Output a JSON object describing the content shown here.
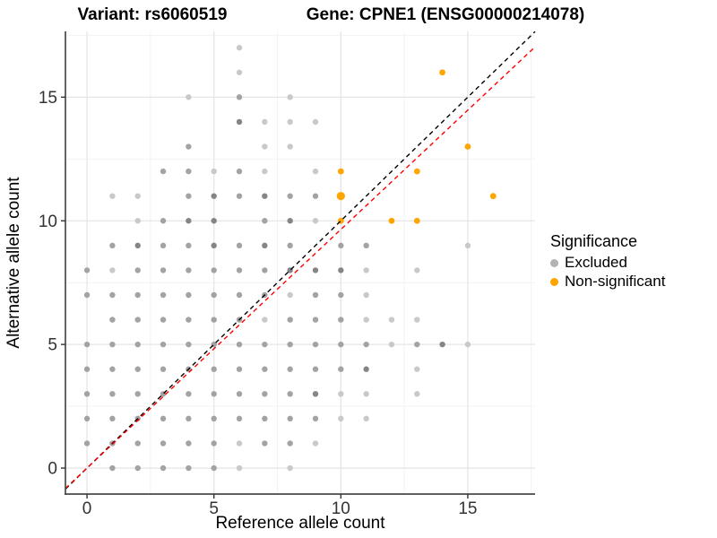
{
  "titles": {
    "left": "Variant: rs6060519",
    "right": "Gene: CPNE1 (ENSG00000214078)"
  },
  "chart_data": {
    "type": "scatter",
    "xlabel": "Reference allele count",
    "ylabel": "Alternative allele count",
    "xlim": [
      -0.85,
      17.65
    ],
    "ylim": [
      -1.05,
      17.66
    ],
    "xticks": [
      0,
      5,
      10,
      15
    ],
    "yticks": [
      0,
      5,
      10,
      15
    ],
    "grid": {
      "major": [
        0,
        5,
        10,
        15
      ],
      "minor": [
        2.5,
        7.5,
        12.5,
        17.5
      ],
      "major_color": "#e6e6e6",
      "minor_color": "#f2f2f2"
    },
    "axis_color": "#4a4a4a",
    "tick_label_color": "#333333",
    "lines": [
      {
        "name": "identity-line",
        "slope": 1,
        "intercept": 0,
        "color": "#000000",
        "dashed": true
      },
      {
        "name": "fit-line",
        "slope": 0.965,
        "intercept": 0,
        "color": "#ff0000",
        "dashed": true
      }
    ],
    "shade_colors": {
      "l": "#c9c9c9",
      "m": "#a3a3a3",
      "d": "#858585"
    },
    "series": [
      {
        "name": "Excluded",
        "color": "#b3b3b3",
        "points": [
          [
            1,
            0,
            "m"
          ],
          [
            2,
            0,
            "m"
          ],
          [
            3,
            0,
            "m"
          ],
          [
            4,
            0,
            "m"
          ],
          [
            5,
            0,
            "m"
          ],
          [
            6,
            0,
            "l"
          ],
          [
            8,
            0,
            "l"
          ],
          [
            0,
            1,
            "m"
          ],
          [
            1,
            1,
            "m"
          ],
          [
            2,
            1,
            "m"
          ],
          [
            3,
            1,
            "m"
          ],
          [
            4,
            1,
            "m"
          ],
          [
            5,
            1,
            "m"
          ],
          [
            6,
            1,
            "l"
          ],
          [
            7,
            1,
            "m"
          ],
          [
            8,
            1,
            "m"
          ],
          [
            9,
            1,
            "l"
          ],
          [
            0,
            2,
            "m"
          ],
          [
            1,
            2,
            "m"
          ],
          [
            2,
            2,
            "m"
          ],
          [
            3,
            2,
            "m"
          ],
          [
            4,
            2,
            "m"
          ],
          [
            5,
            2,
            "m"
          ],
          [
            6,
            2,
            "m"
          ],
          [
            7,
            2,
            "m"
          ],
          [
            8,
            2,
            "m"
          ],
          [
            9,
            2,
            "m"
          ],
          [
            10,
            2,
            "l"
          ],
          [
            11,
            2,
            "l"
          ],
          [
            0,
            3,
            "m"
          ],
          [
            1,
            3,
            "m"
          ],
          [
            2,
            3,
            "m"
          ],
          [
            3,
            3,
            "m"
          ],
          [
            4,
            3,
            "m"
          ],
          [
            5,
            3,
            "m"
          ],
          [
            6,
            3,
            "m"
          ],
          [
            7,
            3,
            "m"
          ],
          [
            8,
            3,
            "m"
          ],
          [
            9,
            3,
            "d"
          ],
          [
            10,
            3,
            "l"
          ],
          [
            11,
            3,
            "l"
          ],
          [
            13,
            3,
            "l"
          ],
          [
            0,
            4,
            "m"
          ],
          [
            1,
            4,
            "m"
          ],
          [
            2,
            4,
            "m"
          ],
          [
            3,
            4,
            "m"
          ],
          [
            4,
            4,
            "m"
          ],
          [
            5,
            4,
            "m"
          ],
          [
            6,
            4,
            "m"
          ],
          [
            7,
            4,
            "m"
          ],
          [
            8,
            4,
            "m"
          ],
          [
            9,
            4,
            "m"
          ],
          [
            10,
            4,
            "m"
          ],
          [
            11,
            4,
            "d"
          ],
          [
            13,
            4,
            "l"
          ],
          [
            0,
            5,
            "m"
          ],
          [
            1,
            5,
            "m"
          ],
          [
            2,
            5,
            "m"
          ],
          [
            3,
            5,
            "m"
          ],
          [
            4,
            5,
            "m"
          ],
          [
            5,
            5,
            "m"
          ],
          [
            6,
            5,
            "m"
          ],
          [
            7,
            5,
            "m"
          ],
          [
            8,
            5,
            "m"
          ],
          [
            9,
            5,
            "m"
          ],
          [
            10,
            5,
            "m"
          ],
          [
            11,
            5,
            "m"
          ],
          [
            12,
            5,
            "l"
          ],
          [
            13,
            5,
            "m"
          ],
          [
            14,
            5,
            "d"
          ],
          [
            15,
            5,
            "l"
          ],
          [
            1,
            6,
            "m"
          ],
          [
            2,
            6,
            "m"
          ],
          [
            3,
            6,
            "m"
          ],
          [
            4,
            6,
            "m"
          ],
          [
            5,
            6,
            "m"
          ],
          [
            6,
            6,
            "m"
          ],
          [
            7,
            6,
            "l"
          ],
          [
            8,
            6,
            "m"
          ],
          [
            9,
            6,
            "m"
          ],
          [
            10,
            6,
            "m"
          ],
          [
            11,
            6,
            "l"
          ],
          [
            12,
            6,
            "l"
          ],
          [
            13,
            6,
            "l"
          ],
          [
            0,
            7,
            "m"
          ],
          [
            1,
            7,
            "m"
          ],
          [
            2,
            7,
            "m"
          ],
          [
            3,
            7,
            "m"
          ],
          [
            4,
            7,
            "m"
          ],
          [
            5,
            7,
            "m"
          ],
          [
            6,
            7,
            "m"
          ],
          [
            7,
            7,
            "m"
          ],
          [
            8,
            7,
            "l"
          ],
          [
            9,
            7,
            "m"
          ],
          [
            10,
            7,
            "m"
          ],
          [
            11,
            7,
            "l"
          ],
          [
            0,
            8,
            "m"
          ],
          [
            1,
            8,
            "l"
          ],
          [
            2,
            8,
            "m"
          ],
          [
            3,
            8,
            "m"
          ],
          [
            4,
            8,
            "m"
          ],
          [
            5,
            8,
            "m"
          ],
          [
            6,
            8,
            "m"
          ],
          [
            7,
            8,
            "m"
          ],
          [
            8,
            8,
            "d"
          ],
          [
            9,
            8,
            "d"
          ],
          [
            10,
            8,
            "d"
          ],
          [
            11,
            8,
            "l"
          ],
          [
            13,
            8,
            "l"
          ],
          [
            1,
            9,
            "m"
          ],
          [
            2,
            9,
            "d"
          ],
          [
            3,
            9,
            "m"
          ],
          [
            4,
            9,
            "m"
          ],
          [
            5,
            9,
            "d"
          ],
          [
            6,
            9,
            "m"
          ],
          [
            7,
            9,
            "d"
          ],
          [
            8,
            9,
            "m"
          ],
          [
            10,
            9,
            "m"
          ],
          [
            11,
            9,
            "m"
          ],
          [
            15,
            9,
            "l"
          ],
          [
            2,
            10,
            "l"
          ],
          [
            3,
            10,
            "m"
          ],
          [
            4,
            10,
            "d"
          ],
          [
            5,
            10,
            "d"
          ],
          [
            7,
            10,
            "m"
          ],
          [
            8,
            10,
            "d"
          ],
          [
            9,
            10,
            "l"
          ],
          [
            1,
            11,
            "l"
          ],
          [
            2,
            11,
            "l"
          ],
          [
            4,
            11,
            "m"
          ],
          [
            5,
            11,
            "d"
          ],
          [
            6,
            11,
            "m"
          ],
          [
            7,
            11,
            "d"
          ],
          [
            8,
            11,
            "m"
          ],
          [
            9,
            11,
            "m"
          ],
          [
            3,
            12,
            "m"
          ],
          [
            4,
            12,
            "m"
          ],
          [
            5,
            12,
            "l"
          ],
          [
            6,
            12,
            "m"
          ],
          [
            7,
            12,
            "l"
          ],
          [
            9,
            12,
            "l"
          ],
          [
            4,
            13,
            "m"
          ],
          [
            7,
            13,
            "l"
          ],
          [
            8,
            13,
            "l"
          ],
          [
            6,
            14,
            "d"
          ],
          [
            7,
            14,
            "l"
          ],
          [
            8,
            14,
            "l"
          ],
          [
            9,
            14,
            "l"
          ],
          [
            4,
            15,
            "l"
          ],
          [
            6,
            15,
            "m"
          ],
          [
            8,
            15,
            "l"
          ],
          [
            6,
            16,
            "l"
          ],
          [
            6,
            17,
            "l"
          ]
        ]
      },
      {
        "name": "Non-significant",
        "color": "#ffa500",
        "points": [
          [
            10,
            10
          ],
          [
            12,
            10
          ],
          [
            13,
            10
          ],
          [
            10,
            11,
            "big"
          ],
          [
            16,
            11
          ],
          [
            10,
            12
          ],
          [
            13,
            12
          ],
          [
            15,
            13
          ],
          [
            14,
            16
          ]
        ]
      }
    ],
    "legend": {
      "title": "Significance",
      "position": "right",
      "entries": [
        {
          "label": "Excluded",
          "color": "#b3b3b3"
        },
        {
          "label": "Non-significant",
          "color": "#ffa500"
        }
      ]
    }
  }
}
